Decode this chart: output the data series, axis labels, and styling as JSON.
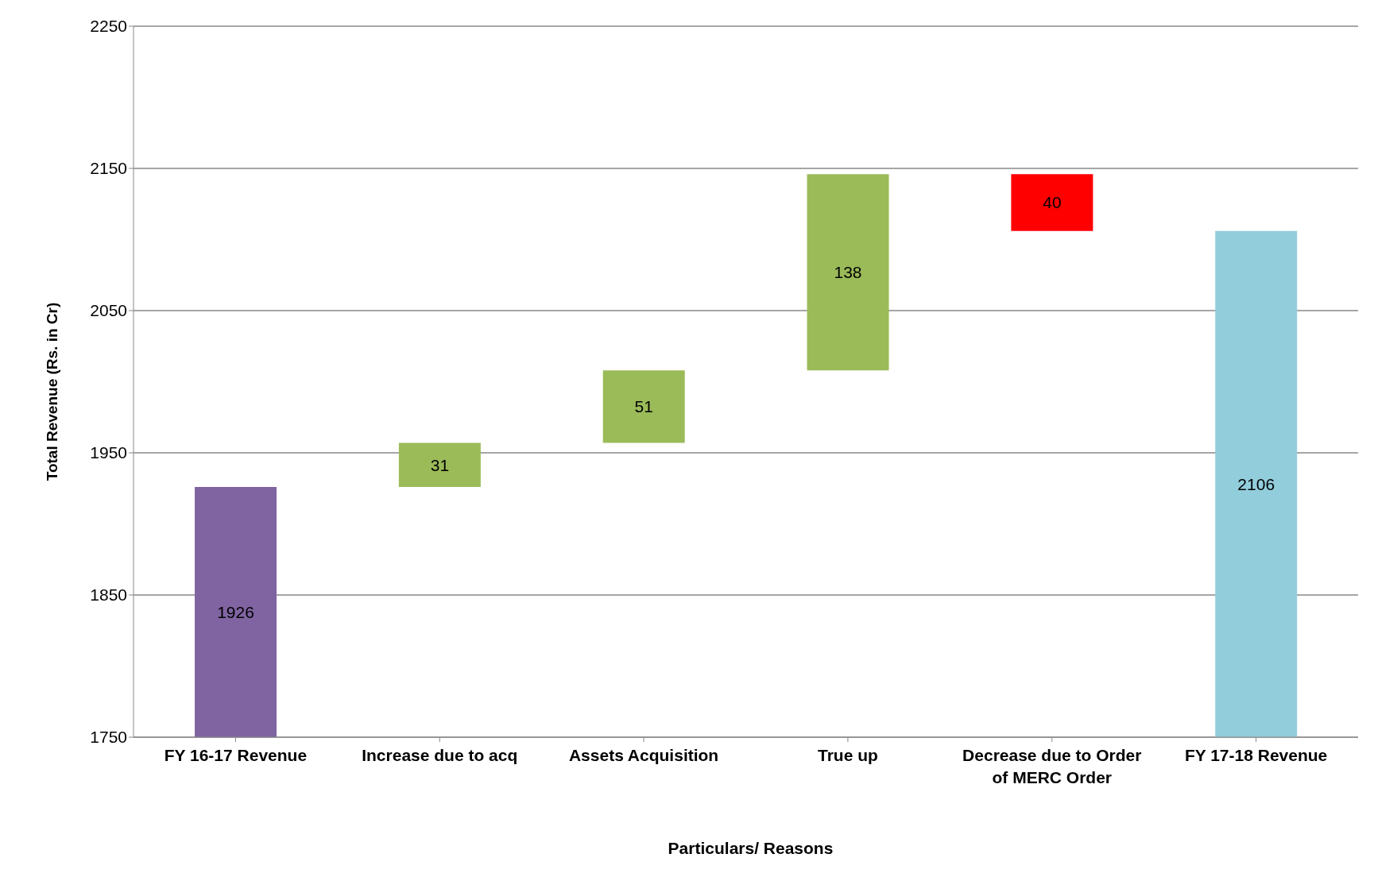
{
  "chart_data": {
    "type": "bar",
    "xlabel": "Particulars/ Reasons",
    "ylabel": "Total Revenue (Rs. in Cr)",
    "categories": [
      "FY 16-17 Revenue",
      "Increase due to acq",
      "Assets Acquisition",
      "True up",
      "Decrease due to Order of MERC Order",
      "FY 17-18 Revenue"
    ],
    "values": [
      1926,
      31,
      51,
      138,
      -40,
      2106
    ],
    "base": [
      0,
      1926,
      1957,
      2008,
      2146,
      0
    ],
    "colors": [
      "#8064a2",
      "#9bbb59",
      "#9bbb59",
      "#9bbb59",
      "#ff0000",
      "#92cddc"
    ],
    "value_labels": [
      "1926",
      "31",
      "51",
      "138",
      "40",
      "2106"
    ],
    "ylim": [
      1750,
      2250
    ],
    "yticks": [
      1750,
      1850,
      1950,
      2050,
      2150,
      2250
    ],
    "grid": "y"
  }
}
